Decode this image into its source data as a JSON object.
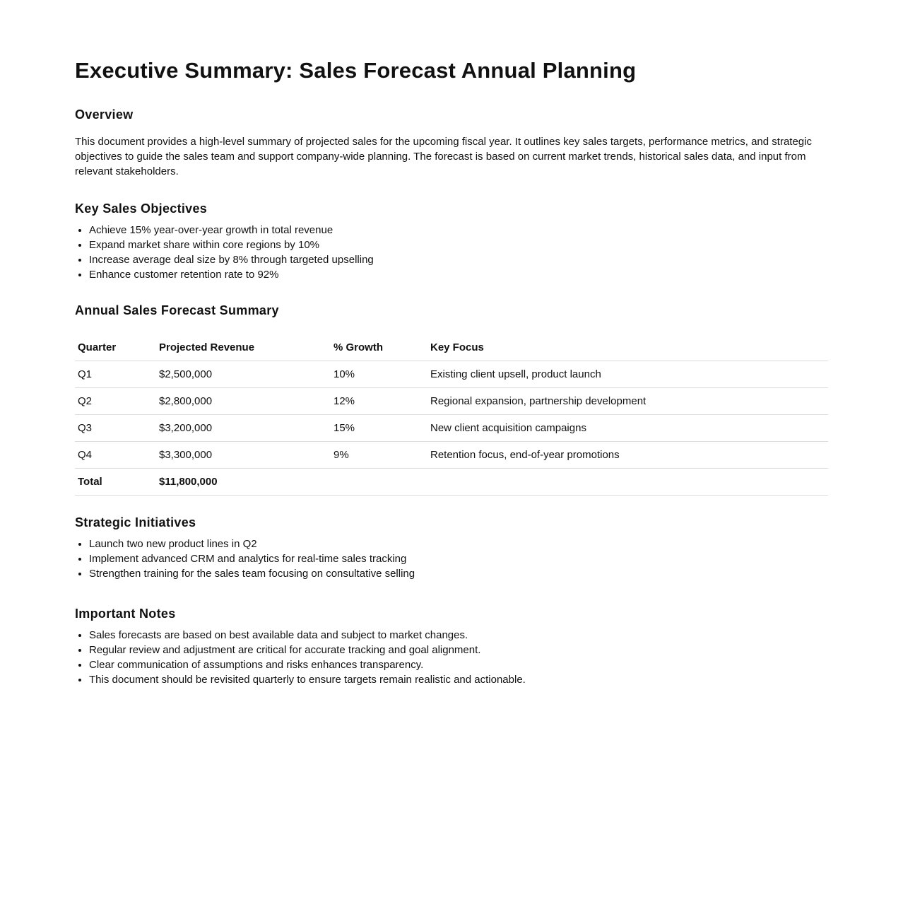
{
  "title": "Executive Summary: Sales Forecast Annual Planning",
  "overview": {
    "heading": "Overview",
    "text": "This document provides a high-level summary of projected sales for the upcoming fiscal year. It outlines key sales targets, performance metrics, and strategic objectives to guide the sales team and support company-wide planning. The forecast is based on current market trends, historical sales data, and input from relevant stakeholders."
  },
  "objectives": {
    "heading": "Key Sales Objectives",
    "items": [
      "Achieve 15% year-over-year growth in total revenue",
      "Expand market share within core regions by 10%",
      "Increase average deal size by 8% through targeted upselling",
      "Enhance customer retention rate to 92%"
    ]
  },
  "forecast": {
    "heading": "Annual Sales Forecast Summary",
    "columns": [
      "Quarter",
      "Projected Revenue",
      "% Growth",
      "Key Focus"
    ],
    "rows": [
      [
        "Q1",
        "$2,500,000",
        "10%",
        "Existing client upsell, product launch"
      ],
      [
        "Q2",
        "$2,800,000",
        "12%",
        "Regional expansion, partnership development"
      ],
      [
        "Q3",
        "$3,200,000",
        "15%",
        "New client acquisition campaigns"
      ],
      [
        "Q4",
        "$3,300,000",
        "9%",
        "Retention focus, end-of-year promotions"
      ]
    ],
    "total": [
      "Total",
      "$11,800,000",
      "",
      ""
    ]
  },
  "initiatives": {
    "heading": "Strategic Initiatives",
    "items": [
      "Launch two new product lines in Q2",
      "Implement advanced CRM and analytics for real-time sales tracking",
      "Strengthen training for the sales team focusing on consultative selling"
    ]
  },
  "notes": {
    "heading": "Important Notes",
    "items": [
      "Sales forecasts are based on best available data and subject to market changes.",
      "Regular review and adjustment are critical for accurate tracking and goal alignment.",
      "Clear communication of assumptions and risks enhances transparency.",
      "This document should be revisited quarterly to ensure targets remain realistic and actionable."
    ]
  }
}
